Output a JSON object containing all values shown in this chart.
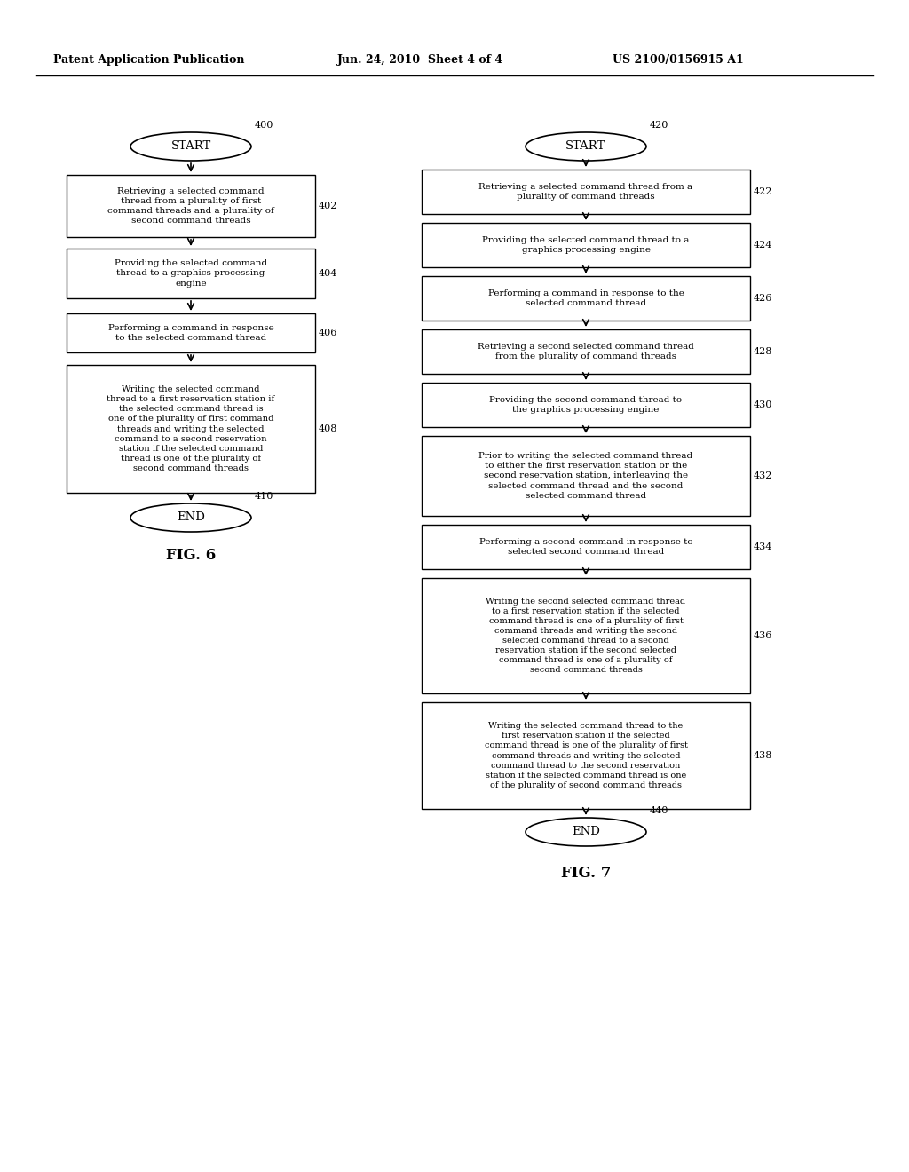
{
  "bg_color": "#ffffff",
  "header_text": "Patent Application Publication",
  "header_date": "Jun. 24, 2010  Sheet 4 of 4",
  "header_patent": "US 2100/0156915 A1",
  "fig6_label": "FIG. 6",
  "fig7_label": "FIG. 7"
}
